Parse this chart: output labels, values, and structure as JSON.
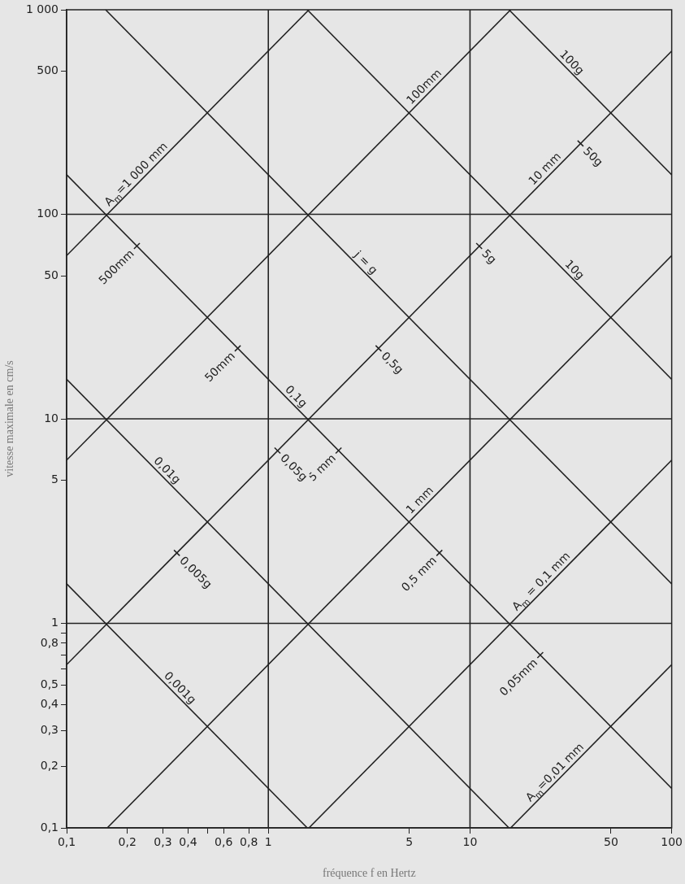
{
  "chart_data": {
    "type": "line",
    "xlabel": "fréquence f en Hertz",
    "ylabel": "vitesse maximale en cm/s",
    "log": "xy",
    "xlim": [
      0.1,
      100
    ],
    "ylim": [
      0.1,
      1000
    ],
    "xticks": [
      {
        "value": 0.1,
        "label": "0,1"
      },
      {
        "value": 0.2,
        "label": "0,2"
      },
      {
        "value": 0.3,
        "label": "0,3"
      },
      {
        "value": 0.4,
        "label": "0,4"
      },
      {
        "value": 0.5,
        "label": null
      },
      {
        "value": 0.6,
        "label": "0,6"
      },
      {
        "value": 0.8,
        "label": "0,8"
      },
      1,
      5,
      10,
      50,
      100
    ],
    "yticks": [
      {
        "value": 0.1,
        "label": "0,1"
      },
      {
        "value": 0.2,
        "label": "0,2"
      },
      {
        "value": 0.3,
        "label": "0,3"
      },
      {
        "value": 0.4,
        "label": "0,4"
      },
      {
        "value": 0.5,
        "label": "0,5"
      },
      {
        "value": 0.6,
        "label": null
      },
      {
        "value": 0.7,
        "label": null
      },
      {
        "value": 0.8,
        "label": "0,8"
      },
      {
        "value": 0.9,
        "label": null
      },
      1,
      5,
      10,
      50,
      100,
      500,
      {
        "value": 1000,
        "label": "1 000"
      }
    ],
    "marker": "none",
    "legend": false,
    "ref_lines": [
      {
        "axis": "x",
        "value": 1,
        "color": "#222222"
      },
      {
        "axis": "x",
        "value": 10,
        "color": "#222222"
      },
      {
        "axis": "y",
        "value": 1,
        "color": "#222222"
      },
      {
        "axis": "y",
        "value": 10,
        "color": "#222222"
      },
      {
        "axis": "y",
        "value": 100,
        "color": "#222222"
      }
    ],
    "series": [
      {
        "color": "#222222",
        "x": [
          0.1,
          1.59
        ],
        "values": [
          62.8,
          1000
        ]
      },
      {
        "color": "#222222",
        "x": [
          0.1,
          15.9
        ],
        "values": [
          6.28,
          1000
        ]
      },
      {
        "color": "#222222",
        "x": [
          0.1,
          100
        ],
        "values": [
          0.628,
          628
        ]
      },
      {
        "color": "#222222",
        "x": [
          0.159,
          100
        ],
        "values": [
          0.1,
          62.8
        ]
      },
      {
        "color": "#222222",
        "x": [
          1.59,
          100
        ],
        "values": [
          0.1,
          6.28
        ]
      },
      {
        "color": "#222222",
        "x": [
          15.9,
          100
        ],
        "values": [
          0.1,
          0.628
        ]
      },
      {
        "color": "#222222",
        "x": [
          15.6,
          100
        ],
        "values": [
          1000,
          156
        ]
      },
      {
        "color": "#222222",
        "x": [
          1.56,
          100
        ],
        "values": [
          1000,
          15.6
        ]
      },
      {
        "color": "#222222",
        "x": [
          0.156,
          100
        ],
        "values": [
          1000,
          1.56
        ]
      },
      {
        "color": "#222222",
        "x": [
          0.1,
          100
        ],
        "values": [
          156,
          0.156
        ]
      },
      {
        "color": "#222222",
        "x": [
          0.1,
          15.6
        ],
        "values": [
          15.6,
          0.1
        ]
      },
      {
        "color": "#222222",
        "x": [
          0.1,
          1.56
        ],
        "values": [
          1.56,
          0.1
        ]
      }
    ],
    "annotations": [
      {
        "text": "A$_{m}$=1 000 mm",
        "x": 0.235,
        "y": 148
      },
      {
        "text": "100mm",
        "x": 6.3,
        "y": 396
      },
      {
        "text": "10 mm",
        "x": 25,
        "y": 157
      },
      {
        "text": "1 mm",
        "x": 6,
        "y": 3.77
      },
      {
        "text": "A$_{m}$ = 0,1 mm",
        "x": 24,
        "y": 1.51
      },
      {
        "text": "A$_{m}$=0,01 mm",
        "x": 28,
        "y": 0.176
      },
      {
        "text": "100g",
        "x": 30,
        "y": 520
      },
      {
        "text": "10g",
        "x": 31,
        "y": 50.4
      },
      {
        "text": "j = g",
        "x": 2.86,
        "y": 54.6
      },
      {
        "text": "0,1g",
        "x": 1.29,
        "y": 12.1
      },
      {
        "text": "0,01g",
        "x": 0.296,
        "y": 5.27
      },
      {
        "text": "0,001g",
        "x": 0.343,
        "y": 0.455
      },
      {
        "text": "500mm",
        "x": 0.223,
        "y": 70
      },
      {
        "text": "50mm",
        "x": 0.705,
        "y": 22.1
      },
      {
        "text": "5 mm",
        "x": 2.23,
        "y": 7.0
      },
      {
        "text": "0,5 mm",
        "x": 7.05,
        "y": 2.21
      },
      {
        "text": "0,05mm",
        "x": 22.3,
        "y": 0.7
      },
      {
        "text": "50g",
        "x": 35.3,
        "y": 222
      },
      {
        "text": "5g",
        "x": 11.1,
        "y": 70
      },
      {
        "text": "0,5g",
        "x": 3.52,
        "y": 22.1
      },
      {
        "text": "0,05g",
        "x": 1.11,
        "y": 7.0
      },
      {
        "text": "0,005g",
        "x": 0.352,
        "y": 2.21
      }
    ]
  }
}
